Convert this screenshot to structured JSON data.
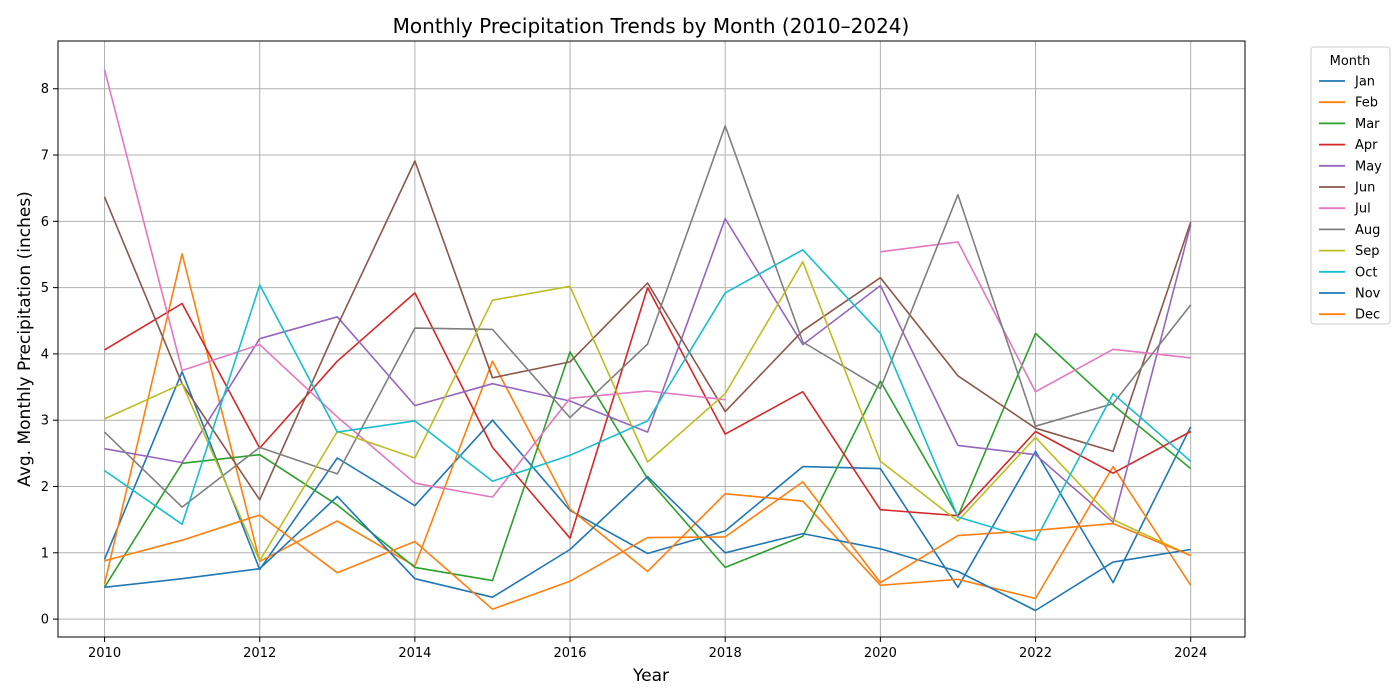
{
  "chart_data": {
    "type": "line",
    "title": "Monthly Precipitation Trends by Month (2010–2024)",
    "xlabel": "Year",
    "ylabel": "Avg. Monthly Precipitation (inches)",
    "xlim": [
      2009.4,
      2024.7
    ],
    "ylim": [
      -0.27,
      8.72
    ],
    "xticks": [
      2010,
      2012,
      2014,
      2016,
      2018,
      2020,
      2022,
      2024
    ],
    "yticks": [
      0,
      1,
      2,
      3,
      4,
      5,
      6,
      7,
      8
    ],
    "grid": true,
    "legend": {
      "title": "Month",
      "position": "outside right, top"
    },
    "x": [
      2010,
      2011,
      2012,
      2013,
      2014,
      2015,
      2016,
      2017,
      2018,
      2019,
      2020,
      2021,
      2022,
      2023,
      2024
    ],
    "series": [
      {
        "name": "Jan",
        "color": "#1f77b4",
        "values": [
          0.9,
          3.73,
          0.75,
          2.43,
          1.71,
          3.0,
          1.64,
          0.99,
          1.33,
          2.3,
          2.27,
          0.48,
          2.53,
          0.55,
          2.9
        ]
      },
      {
        "name": "Feb",
        "color": "#ff7f0e",
        "values": [
          0.53,
          5.51,
          0.87,
          1.48,
          0.8,
          3.89,
          1.66,
          0.72,
          1.89,
          1.78,
          0.51,
          0.6,
          0.31,
          2.3,
          0.51
        ]
      },
      {
        "name": "Mar",
        "color": "#2ca02c",
        "values": [
          0.48,
          2.35,
          2.48,
          1.72,
          0.78,
          0.58,
          4.03,
          2.12,
          0.78,
          1.25,
          3.59,
          1.55,
          4.31,
          3.23,
          2.27
        ]
      },
      {
        "name": "Apr",
        "color": "#d62728",
        "values": [
          4.06,
          4.76,
          2.58,
          3.89,
          4.92,
          2.59,
          1.22,
          5.0,
          2.79,
          3.43,
          1.65,
          1.56,
          2.83,
          2.2,
          2.83
        ]
      },
      {
        "name": "May",
        "color": "#9467bd",
        "values": [
          2.57,
          2.36,
          4.23,
          4.56,
          3.22,
          3.55,
          3.29,
          2.82,
          6.04,
          4.14,
          5.03,
          2.62,
          2.48,
          1.46,
          5.95
        ]
      },
      {
        "name": "Jun",
        "color": "#8c564b",
        "values": [
          6.37,
          3.55,
          1.8,
          4.42,
          6.91,
          3.64,
          3.88,
          5.07,
          3.13,
          4.35,
          5.15,
          3.67,
          2.88,
          2.53,
          5.99
        ]
      },
      {
        "name": "Jul",
        "color": "#e377c2",
        "values": [
          8.29,
          3.75,
          4.14,
          3.05,
          2.05,
          1.84,
          3.33,
          3.44,
          3.31,
          null,
          5.54,
          5.69,
          3.43,
          4.07,
          3.94
        ]
      },
      {
        "name": "Aug",
        "color": "#7f7f7f",
        "values": [
          2.82,
          1.69,
          2.59,
          2.19,
          4.39,
          4.37,
          3.04,
          4.15,
          7.44,
          4.18,
          3.48,
          6.4,
          2.91,
          3.25,
          4.74
        ]
      },
      {
        "name": "Sep",
        "color": "#bcbd22",
        "values": [
          3.02,
          3.55,
          0.88,
          2.83,
          2.43,
          4.81,
          5.02,
          2.37,
          3.4,
          5.39,
          2.38,
          1.48,
          2.74,
          1.5,
          0.96
        ]
      },
      {
        "name": "Oct",
        "color": "#17becf",
        "values": [
          2.24,
          1.43,
          5.04,
          2.82,
          2.99,
          2.08,
          2.47,
          2.99,
          4.92,
          5.57,
          4.31,
          1.54,
          1.19,
          3.4,
          2.38
        ]
      },
      {
        "name": "Nov",
        "color": "#1f77b4",
        "values": [
          0.48,
          0.61,
          0.76,
          1.85,
          0.61,
          0.33,
          1.05,
          2.15,
          1.0,
          1.29,
          1.06,
          0.72,
          0.13,
          0.86,
          1.05
        ]
      },
      {
        "name": "Dec",
        "color": "#ff7f0e",
        "values": [
          0.88,
          1.19,
          1.57,
          0.7,
          1.17,
          0.15,
          0.57,
          1.23,
          1.24,
          2.07,
          0.55,
          1.26,
          1.34,
          1.44,
          0.96
        ]
      }
    ]
  }
}
